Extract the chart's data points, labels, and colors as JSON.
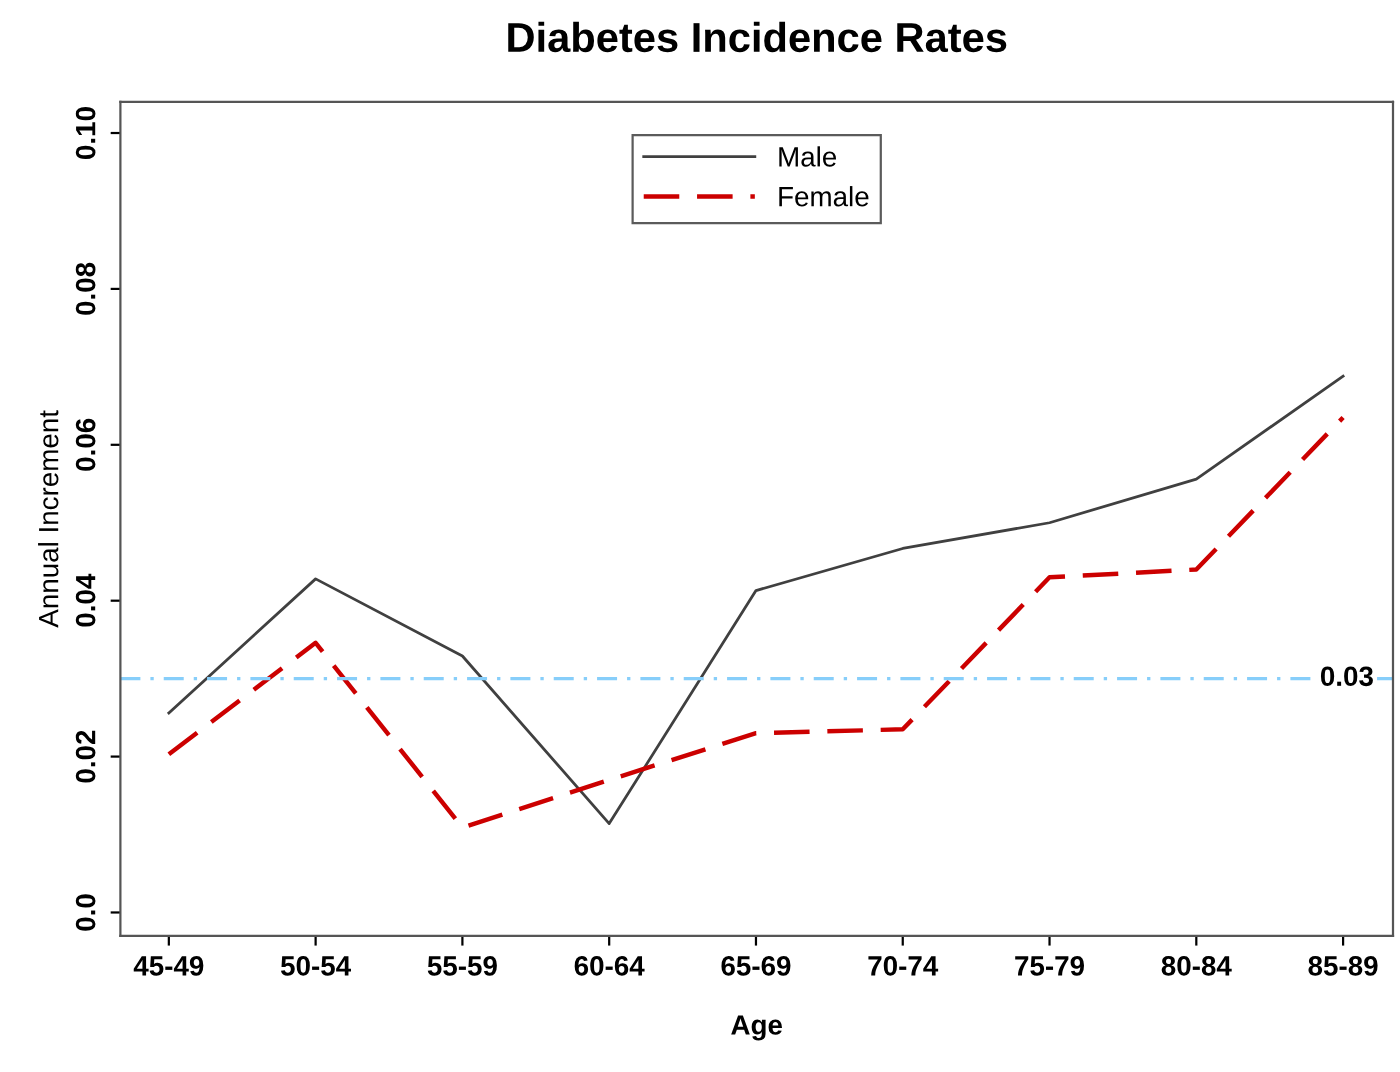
{
  "chart_data": {
    "type": "line",
    "title": "Diabetes Incidence Rates",
    "xlabel": "Age",
    "ylabel": "Annual Increment",
    "categories": [
      "45-49",
      "50-54",
      "55-59",
      "60-64",
      "65-69",
      "70-74",
      "75-79",
      "80-84",
      "85-89"
    ],
    "series": [
      {
        "name": "Male",
        "color": "#404040",
        "line_style": "solid",
        "values": [
          0.0256,
          0.0428,
          0.0329,
          0.0114,
          0.0413,
          0.0467,
          0.05,
          0.0556,
          0.0688
        ]
      },
      {
        "name": "Female",
        "color": "#cc0000",
        "line_style": "dashed",
        "values": [
          0.0203,
          0.0346,
          0.0109,
          0.017,
          0.023,
          0.0235,
          0.043,
          0.044,
          0.0635
        ]
      }
    ],
    "ylim": [
      -0.003,
      0.104
    ],
    "yticks": [
      {
        "value": 0,
        "label": "0.0"
      },
      0.02,
      0.04,
      0.06,
      0.08,
      {
        "value": 0.1,
        "label": "0.10"
      }
    ],
    "ref_lines": [
      {
        "axis": "y",
        "value": 0.03,
        "label": "0.03",
        "color": "#87cefa",
        "line_style": "dashdot"
      }
    ],
    "legend": "top",
    "grid": false,
    "marker": "none"
  }
}
